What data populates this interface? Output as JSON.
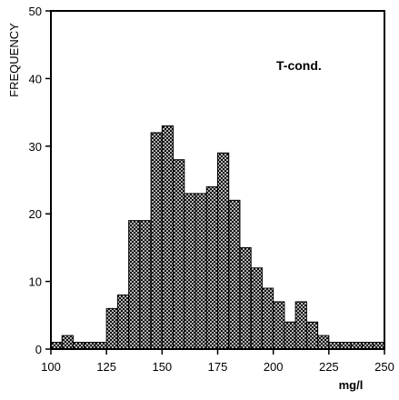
{
  "chart_data": {
    "type": "bar",
    "title": "",
    "annotation": "T-cond.",
    "xlabel": "mg/l",
    "ylabel": "FREQUENCY",
    "xlim": [
      100,
      250
    ],
    "ylim": [
      0,
      50
    ],
    "bin_width": 5,
    "bin_starts": [
      100,
      105,
      110,
      115,
      120,
      125,
      130,
      135,
      140,
      145,
      150,
      155,
      160,
      165,
      170,
      175,
      180,
      185,
      190,
      195,
      200,
      205,
      210,
      215,
      220,
      225,
      230,
      235,
      240,
      245
    ],
    "values": [
      1,
      2,
      1,
      1,
      1,
      6,
      8,
      19,
      19,
      32,
      33,
      28,
      23,
      23,
      24,
      29,
      22,
      15,
      12,
      9,
      7,
      4,
      7,
      4,
      2,
      1,
      1,
      1,
      1,
      1
    ],
    "xticks": [
      100,
      125,
      150,
      175,
      200,
      225,
      250
    ],
    "yticks": [
      0,
      10,
      20,
      30,
      40,
      50
    ],
    "fill_pattern": "crosshatch",
    "colors": {
      "bar_fill": "#ffffff",
      "hatch": "#000000",
      "frame": "#000000"
    }
  }
}
